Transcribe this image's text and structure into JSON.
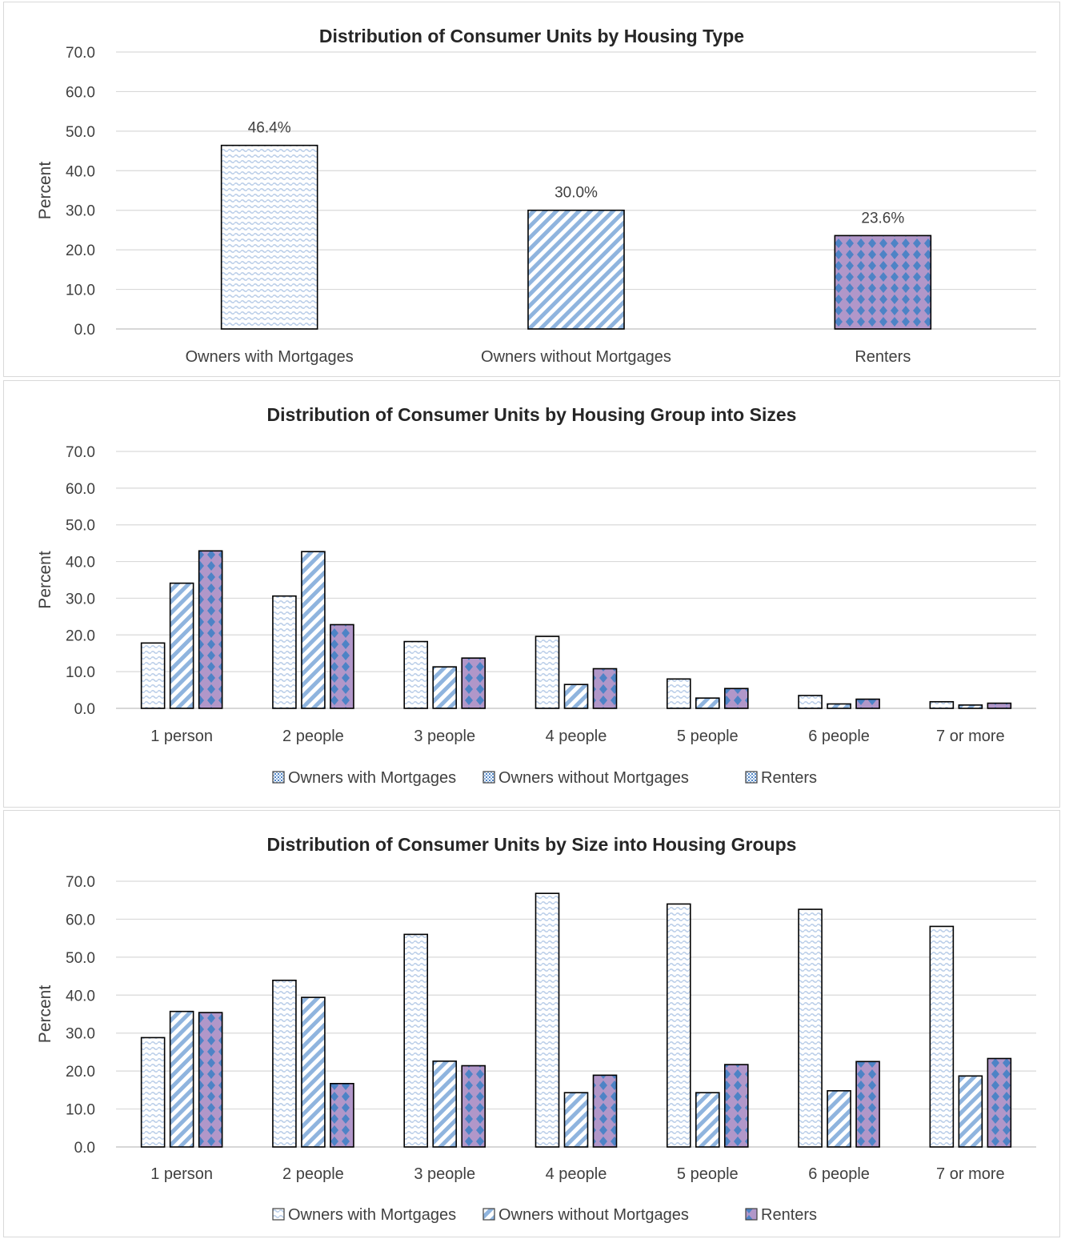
{
  "colors": {
    "owners_with_mortgages": "#b9cde8",
    "owners_without_mortgages": "#8fb4de",
    "renters_fill": "#b197c9",
    "renters_dots": "#4d83c6",
    "grid": "#d9d9d9",
    "bar_outline": "#000000"
  },
  "chart_data": [
    {
      "type": "bar",
      "title": "Distribution of Consumer Units by Housing Type",
      "ylabel": "Percent",
      "ylim": [
        0,
        70
      ],
      "yticks": [
        "0.0",
        "10.0",
        "20.0",
        "30.0",
        "40.0",
        "50.0",
        "60.0",
        "70.0"
      ],
      "grid": true,
      "categories": [
        "Owners with Mortgages",
        "Owners without Mortgages",
        "Renters"
      ],
      "values": [
        46.4,
        30.0,
        23.6
      ],
      "data_labels": [
        "46.4%",
        "30.0%",
        "23.6%"
      ],
      "patterns": [
        "wave",
        "diag",
        "diamond"
      ],
      "legend": null
    },
    {
      "type": "bar",
      "title": "Distribution of Consumer Units by Housing Group into Sizes",
      "ylabel": "Percent",
      "ylim": [
        0,
        70
      ],
      "yticks": [
        "0.0",
        "10.0",
        "20.0",
        "30.0",
        "40.0",
        "50.0",
        "60.0",
        "70.0"
      ],
      "grid": true,
      "categories": [
        "1 person",
        "2 people",
        "3 people",
        "4 people",
        "5 people",
        "6 people",
        "7 or more"
      ],
      "series": [
        {
          "name": "Owners with Mortgages",
          "pattern": "wave",
          "values": [
            17.8,
            30.6,
            18.2,
            19.6,
            8.0,
            3.5,
            1.8
          ]
        },
        {
          "name": "Owners without Mortgages",
          "pattern": "diag",
          "values": [
            34.1,
            42.7,
            11.3,
            6.5,
            2.8,
            1.2,
            0.9
          ]
        },
        {
          "name": "Renters",
          "pattern": "diamond",
          "values": [
            42.9,
            22.8,
            13.7,
            10.8,
            5.4,
            2.5,
            1.4
          ]
        }
      ],
      "legend": "bottom",
      "legend_pattern": "grid"
    },
    {
      "type": "bar",
      "title": "Distribution of Consumer Units by Size into Housing Groups",
      "ylabel": "Percent",
      "ylim": [
        0,
        70
      ],
      "yticks": [
        "0.0",
        "10.0",
        "20.0",
        "30.0",
        "40.0",
        "50.0",
        "60.0",
        "70.0"
      ],
      "grid": true,
      "categories": [
        "1 person",
        "2 people",
        "3 people",
        "4 people",
        "5 people",
        "6 people",
        "7 or more"
      ],
      "series": [
        {
          "name": "Owners with Mortgages",
          "pattern": "wave",
          "values": [
            28.8,
            43.9,
            56.0,
            66.8,
            64.0,
            62.6,
            58.1
          ]
        },
        {
          "name": "Owners without Mortgages",
          "pattern": "diag",
          "values": [
            35.7,
            39.4,
            22.6,
            14.3,
            14.3,
            14.8,
            18.7
          ]
        },
        {
          "name": "Renters",
          "pattern": "diamond",
          "values": [
            35.4,
            16.7,
            21.4,
            18.9,
            21.7,
            22.5,
            23.3
          ]
        }
      ],
      "legend": "bottom",
      "legend_pattern": "series"
    }
  ]
}
